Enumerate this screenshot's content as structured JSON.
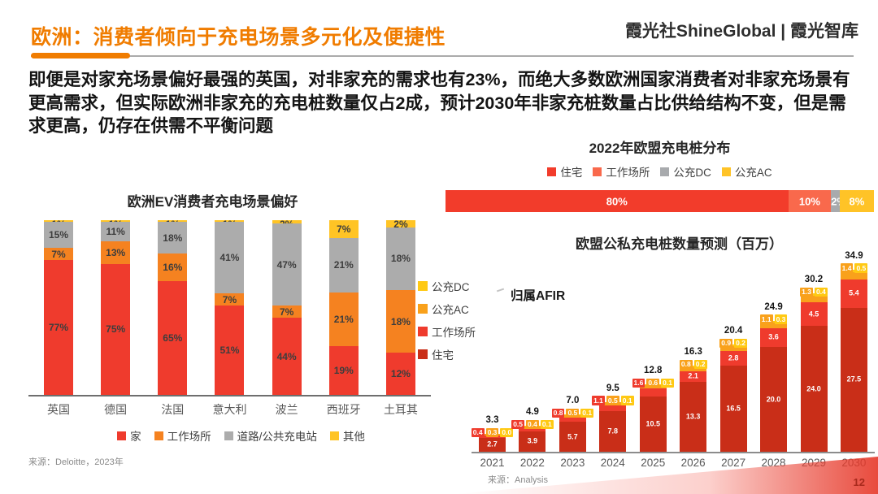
{
  "header": {
    "title": "欧洲：消费者倾向于充电场景多元化及便捷性",
    "brand": "霞光社ShineGlobal | 霞光智库"
  },
  "intro": "即便是对家充场景偏好最强的英国，对非家充的需求也有23%，而绝大多数欧洲国家消费者对非家充场景有更高需求，但实际欧洲非家充的充电桩数量仅占2成，预计2030年非家充桩数量占比供给结构不变，但是需求更高，仍存在供需不平衡问题",
  "page_number": "12",
  "colors": {
    "accent_orange": "#F07C00",
    "red": "#EF3B2D",
    "orange": "#F58220",
    "gray": "#ACACAC",
    "yellow": "#FFC425",
    "dark_red": "#C92E18",
    "amber": "#F9A11B",
    "gold": "#FFC913"
  },
  "chart_data": [
    {
      "id": "ev-preference",
      "type": "bar",
      "variant": "stacked-normalized",
      "title": "欧洲EV消费者充电场景偏好",
      "categories": [
        "英国",
        "德国",
        "法国",
        "意大利",
        "波兰",
        "西班牙",
        "土耳其"
      ],
      "series": [
        {
          "name": "家",
          "color": "#EF3B2D",
          "values": [
            77,
            75,
            65,
            51,
            44,
            19,
            12
          ]
        },
        {
          "name": "工作场所",
          "color": "#F58220",
          "values": [
            7,
            13,
            16,
            7,
            7,
            21,
            18
          ]
        },
        {
          "name": "道路/公共充电站",
          "color": "#ACACAC",
          "values": [
            15,
            11,
            18,
            41,
            47,
            21,
            18
          ]
        },
        {
          "name": "其他",
          "color": "#FFC425",
          "values": [
            1,
            1,
            1,
            1,
            2,
            7,
            2
          ]
        }
      ],
      "value_suffix": "%",
      "legend_position": "bottom",
      "source": "来源：Deloitte，2023年"
    },
    {
      "id": "eu-distribution-2022",
      "type": "bar",
      "variant": "horizontal-stacked",
      "title": "2022年欧盟充电桩分布",
      "segments": [
        {
          "label": "住宅",
          "value": 80,
          "display": "80%",
          "color": "#F23C2B"
        },
        {
          "label": "工作场所",
          "value": 10,
          "display": "10%",
          "color": "#F9694C"
        },
        {
          "label": "公充DC",
          "value": 2,
          "display": "2%",
          "color": "#A8AAAD"
        },
        {
          "label": "公充AC",
          "value": 8,
          "display": "8%",
          "color": "#FFC327"
        }
      ],
      "legend_position": "top"
    },
    {
      "id": "eu-forecast",
      "type": "bar",
      "variant": "stacked",
      "title": "欧盟公私充电桩数量预测（百万）",
      "annotation": "归属AFIR",
      "categories": [
        "2021",
        "2022",
        "2023",
        "2024",
        "2025",
        "2026",
        "2027",
        "2028",
        "2029",
        "2030"
      ],
      "series": [
        {
          "name": "住宅",
          "color": "#C92E18",
          "values": [
            "2.7",
            "3.9",
            "5.7",
            "7.8",
            "10.5",
            "13.3",
            "16.5",
            "20.0",
            "24.0",
            "27.5"
          ]
        },
        {
          "name": "工作场所",
          "color": "#EF3B2D",
          "values": [
            "0.4",
            "0.5",
            "0.8",
            "1.1",
            "1.6",
            "2.1",
            "2.8",
            "3.6",
            "4.5",
            "5.4"
          ]
        },
        {
          "name": "公充AC",
          "color": "#F9A11B",
          "values": [
            "0.3",
            "0.4",
            "0.5",
            "0.5",
            "0.6",
            "0.8",
            "0.9",
            "1.1",
            "1.3",
            "1.4"
          ]
        },
        {
          "name": "公充DC",
          "color": "#FFC913",
          "values": [
            "0.0",
            "0.1",
            "0.1",
            "0.1",
            "0.1",
            "0.2",
            "0.2",
            "0.3",
            "0.4",
            "0.5"
          ]
        }
      ],
      "totals": [
        "3.3",
        "4.9",
        "7.0",
        "9.5",
        "12.8",
        "16.3",
        "20.4",
        "24.9",
        "30.2",
        "34.9"
      ],
      "legend_order_top_to_bottom": [
        "公充DC",
        "公充AC",
        "工作场所",
        "住宅"
      ],
      "unit": "百万",
      "source": "来源：Analysis"
    }
  ]
}
